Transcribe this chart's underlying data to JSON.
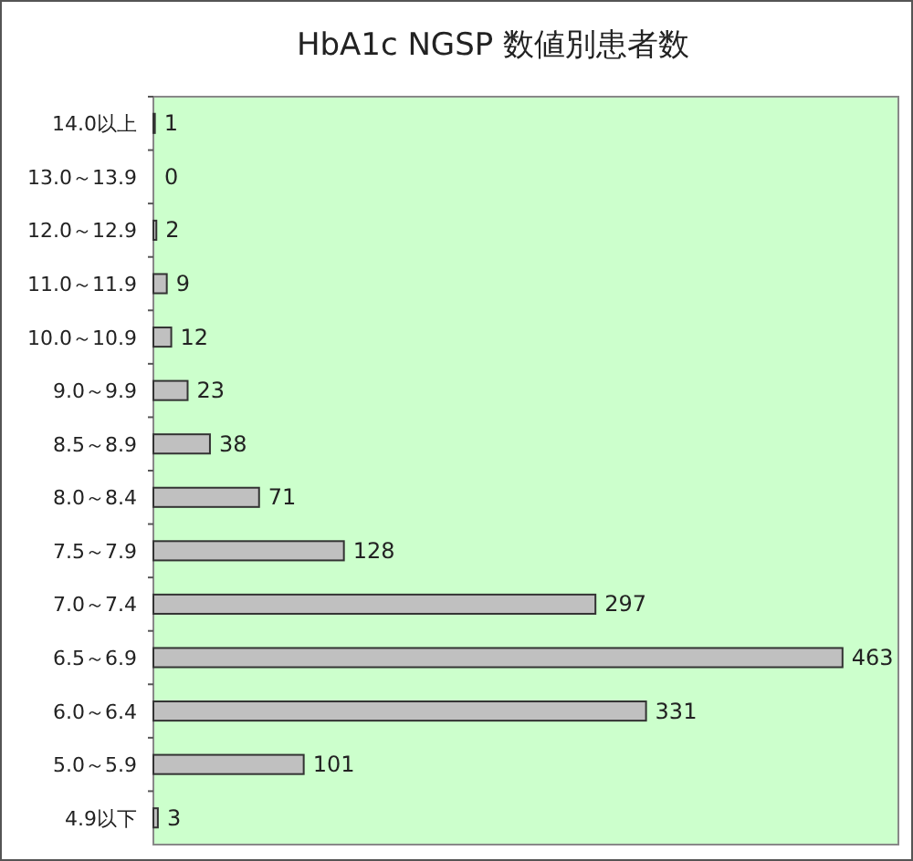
{
  "chart_data": {
    "type": "bar",
    "title": "HbA1c NGSP 数値別患者数",
    "orientation": "horizontal",
    "data_labels": true,
    "color": "#c0c0c0",
    "categories": [
      "14.0以上",
      "13.0～13.9",
      "12.0～12.9",
      "11.0～11.9",
      "10.0～10.9",
      "9.0～9.9",
      "8.5～8.9",
      "8.0～8.4",
      "7.5～7.9",
      "7.0～7.4",
      "6.5～6.9",
      "6.0～6.4",
      "5.0～5.9",
      "4.9以下"
    ],
    "values": [
      1,
      0,
      2,
      9,
      12,
      23,
      38,
      71,
      128,
      297,
      463,
      331,
      101,
      3
    ]
  }
}
